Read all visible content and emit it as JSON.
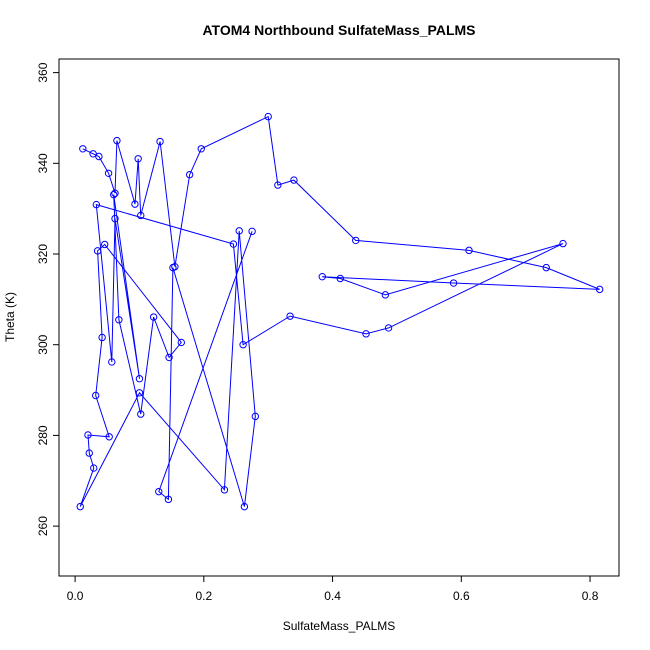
{
  "chart_data": {
    "type": "scatter",
    "title": "ATOM4 Northbound SulfateMass_PALMS",
    "xlabel": "SulfateMass_PALMS",
    "ylabel": "Theta (K)",
    "xlim": [
      -0.025,
      0.845
    ],
    "ylim": [
      249,
      363
    ],
    "xticks": [
      0.0,
      0.2,
      0.4,
      0.6,
      0.8
    ],
    "xtick_labels": [
      "0.0",
      "0.2",
      "0.4",
      "0.6",
      "0.8"
    ],
    "yticks": [
      260,
      280,
      300,
      320,
      340,
      360
    ],
    "ytick_labels": [
      "260",
      "280",
      "300",
      "320",
      "340",
      "360"
    ],
    "grid": false,
    "style": "lines-and-open-circles",
    "color": "#0000ff",
    "series": [
      {
        "x": [
          0.012,
          0.028,
          0.037,
          0.052,
          0.062,
          0.065,
          0.093,
          0.098,
          0.102,
          0.132,
          0.155,
          0.178,
          0.196,
          0.3,
          0.315,
          0.34,
          0.436,
          0.612,
          0.732,
          0.815,
          0.588,
          0.384,
          0.412,
          0.482,
          0.758,
          0.487,
          0.452,
          0.334,
          0.261,
          0.246,
          0.033,
          0.057,
          0.062,
          0.1,
          0.06,
          0.068,
          0.102,
          0.122,
          0.146,
          0.165,
          0.046,
          0.035,
          0.042,
          0.032,
          0.053,
          0.02,
          0.022,
          0.029,
          0.008,
          0.1,
          0.232,
          0.255,
          0.28,
          0.263,
          0.152,
          0.145,
          0.13,
          0.275
        ],
        "y": [
          343.2,
          342.1,
          341.5,
          337.8,
          333.4,
          345.0,
          331.0,
          341.0,
          328.5,
          344.8,
          317.2,
          337.5,
          343.2,
          350.3,
          335.2,
          336.3,
          323.0,
          320.8,
          317.0,
          312.2,
          313.6,
          315.0,
          314.6,
          311.0,
          322.3,
          303.7,
          302.4,
          306.3,
          300.0,
          322.2,
          330.9,
          296.2,
          327.8,
          292.5,
          333.1,
          305.5,
          284.7,
          306.1,
          297.2,
          300.5,
          322.1,
          320.7,
          301.6,
          288.8,
          279.7,
          280.1,
          276.1,
          272.8,
          264.3,
          289.4,
          268.0,
          325.1,
          284.2,
          264.3,
          317.0,
          265.9,
          267.6,
          325.0
        ]
      }
    ]
  }
}
